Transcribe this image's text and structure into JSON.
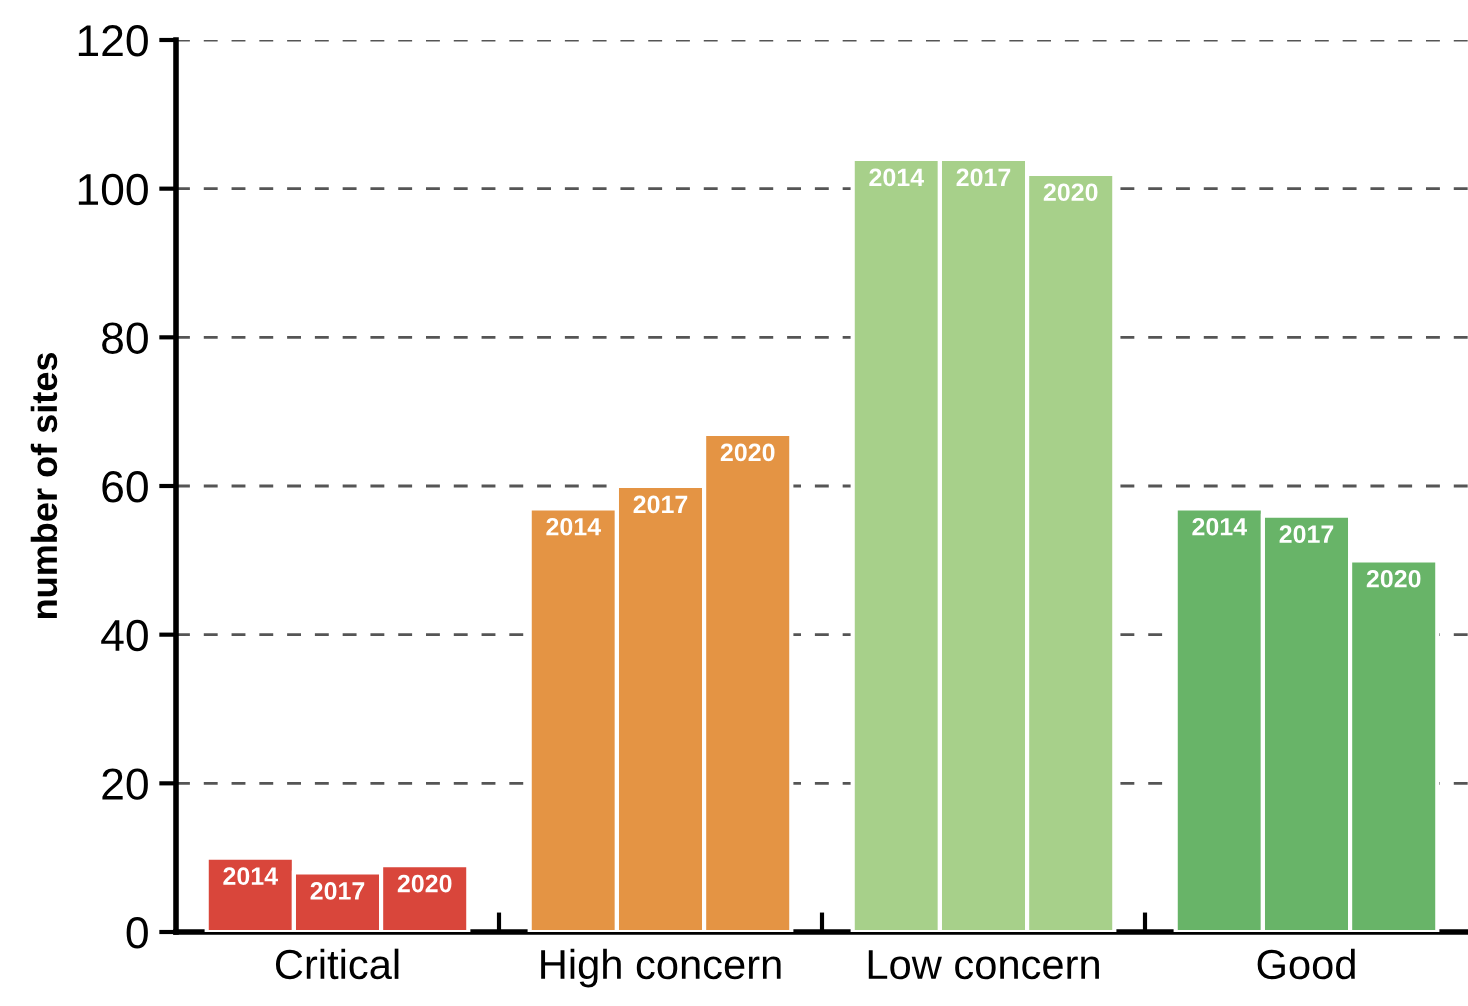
{
  "chart_data": {
    "type": "bar",
    "ylabel": "number of sites",
    "categories": [
      "Critical",
      "High concern",
      "Low concern",
      "Good"
    ],
    "series": [
      {
        "name": "2014",
        "colors": [
          "#d9463b",
          "#e49444",
          "#a7d08a",
          "#68b468"
        ],
        "values": [
          10,
          57,
          104,
          57
        ]
      },
      {
        "name": "2017",
        "colors": [
          "#d9463b",
          "#e49444",
          "#a7d08a",
          "#68b468"
        ],
        "values": [
          8,
          60,
          104,
          56
        ]
      },
      {
        "name": "2020",
        "colors": [
          "#d9463b",
          "#e49444",
          "#a7d08a",
          "#68b468"
        ],
        "values": [
          9,
          67,
          102,
          50
        ]
      }
    ],
    "ylim": [
      0,
      120
    ],
    "yticks": [
      0,
      20,
      40,
      60,
      80,
      100,
      120
    ],
    "grid": "y",
    "legend": false
  }
}
